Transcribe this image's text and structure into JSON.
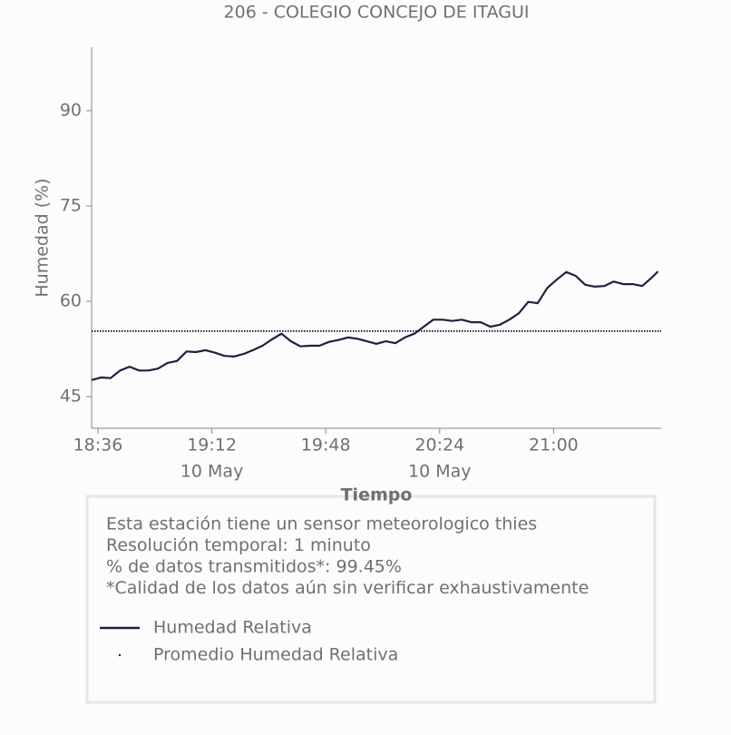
{
  "chart_data": {
    "type": "line",
    "title": "206 - COLEGIO CONCEJO DE ITAGUI",
    "y_label": "Humedad (%)",
    "x_label": "Tiempo",
    "x": [
      "18:34",
      "18:37",
      "18:40",
      "18:43",
      "18:46",
      "18:49",
      "18:52",
      "18:55",
      "18:58",
      "19:01",
      "19:04",
      "19:07",
      "19:10",
      "19:13",
      "19:16",
      "19:19",
      "19:22",
      "19:25",
      "19:28",
      "19:31",
      "19:34",
      "19:37",
      "19:40",
      "19:43",
      "19:46",
      "19:49",
      "19:52",
      "19:55",
      "19:58",
      "20:01",
      "20:04",
      "20:07",
      "20:10",
      "20:13",
      "20:16",
      "20:19",
      "20:22",
      "20:25",
      "20:28",
      "20:31",
      "20:34",
      "20:37",
      "20:40",
      "20:43",
      "20:46",
      "20:49",
      "20:52",
      "20:55",
      "20:58",
      "21:01",
      "21:04",
      "21:07",
      "21:10",
      "21:13",
      "21:16",
      "21:19",
      "21:22",
      "21:25",
      "21:28",
      "21:31",
      "21:33"
    ],
    "series": [
      {
        "name": "Humedad Relativa",
        "color": "#20203f",
        "style": "solid",
        "values": [
          47.6,
          48.0,
          47.9,
          49.1,
          49.7,
          49.1,
          49.1,
          49.4,
          50.3,
          50.6,
          52.1,
          52.0,
          52.3,
          51.9,
          51.4,
          51.3,
          51.7,
          52.3,
          53.0,
          54.0,
          54.9,
          53.7,
          52.9,
          53.0,
          53.0,
          53.6,
          53.9,
          54.3,
          54.1,
          53.7,
          53.3,
          53.7,
          53.4,
          54.3,
          54.9,
          56.0,
          57.1,
          57.1,
          56.9,
          57.1,
          56.7,
          56.7,
          56.0,
          56.3,
          57.1,
          58.1,
          59.9,
          59.7,
          62.1,
          63.4,
          64.6,
          64.0,
          62.6,
          62.3,
          62.4,
          63.1,
          62.7,
          62.7,
          62.4,
          63.7,
          64.7
        ]
      },
      {
        "name": "Promedio Humedad Relativa",
        "color": "#20203f",
        "style": "dotted",
        "value": 55.3
      }
    ],
    "xlim": [
      "18:34",
      "21:34"
    ],
    "xticks": [
      "18:36",
      {
        "value": "19:12",
        "label": "19:12",
        "date": "10 May"
      },
      "19:48",
      {
        "value": "20:24",
        "label": "20:24",
        "date": "10 May"
      },
      "21:00"
    ],
    "ylim": [
      40,
      100
    ],
    "yticks": [
      45,
      60,
      75,
      90
    ],
    "grid": false
  },
  "info": [
    "Esta estación tiene un sensor meteorologico thies",
    "Resolución temporal: 1 minuto",
    "% de datos transmitidos*: 99.45%",
    "*Calidad de los datos aún sin verificar exhaustivamente"
  ]
}
